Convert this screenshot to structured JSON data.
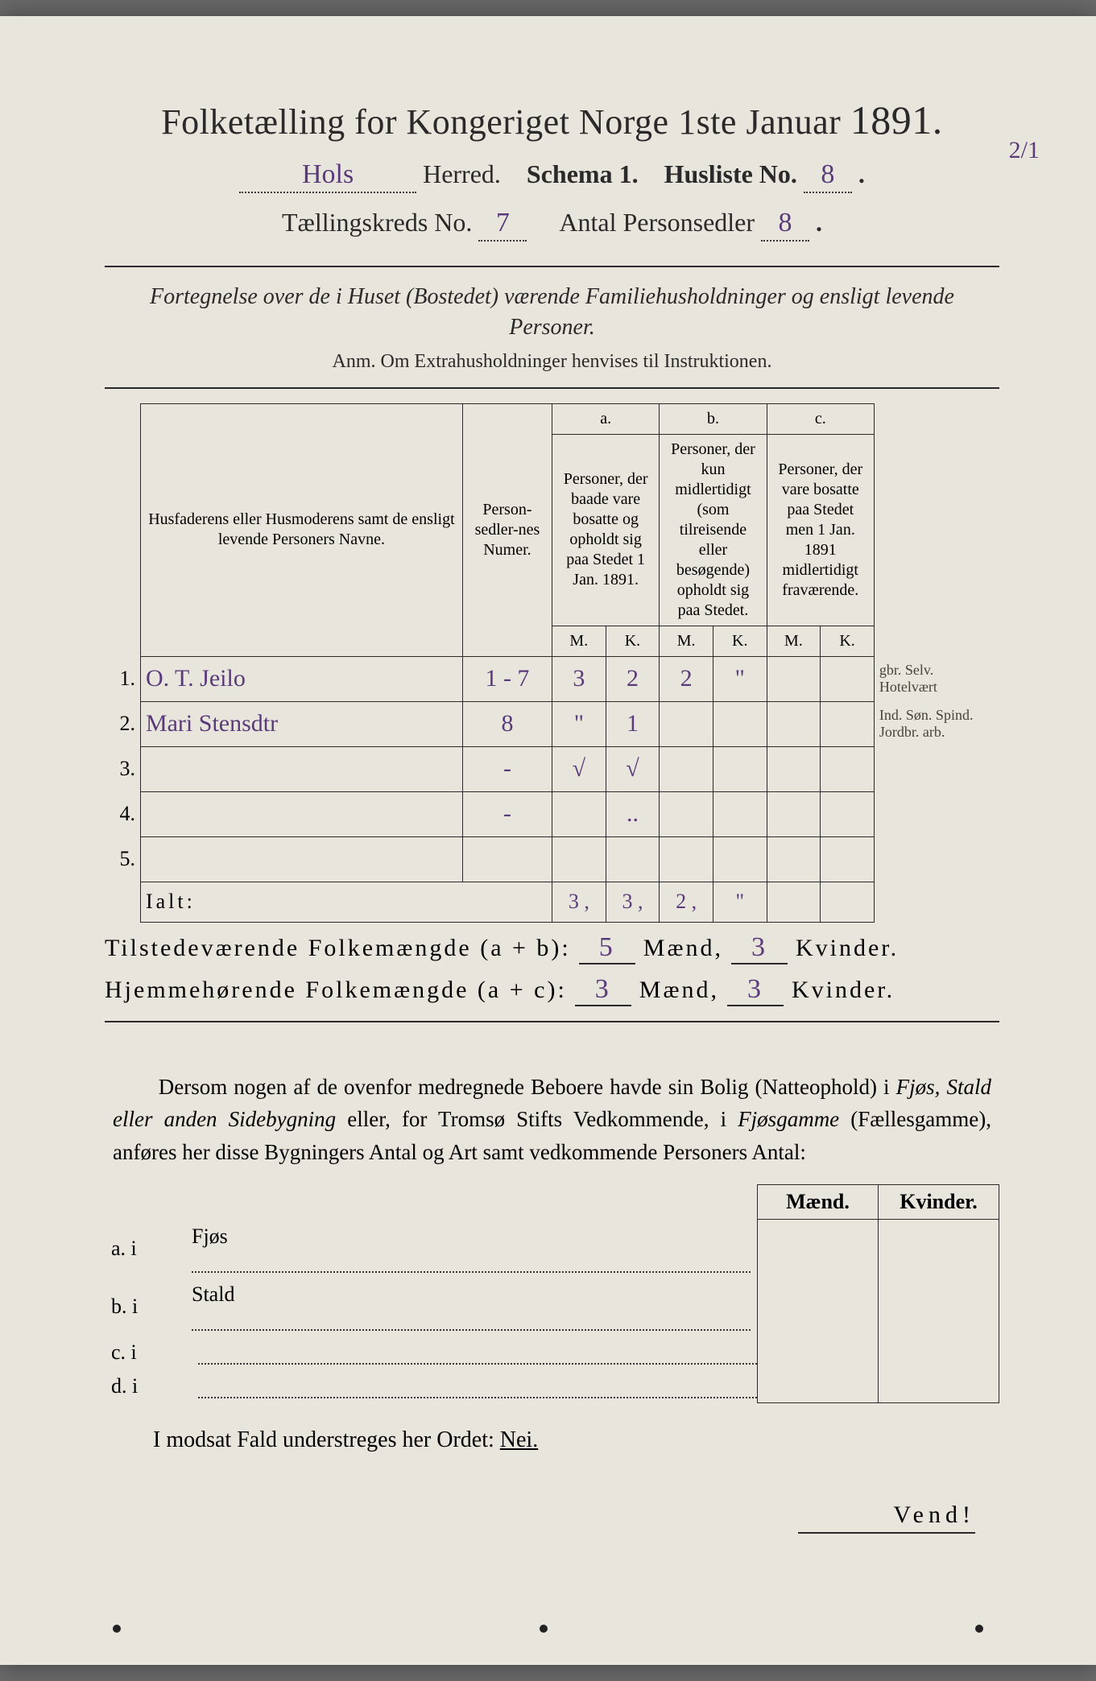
{
  "title": {
    "main": "Folketælling for Kongeriget Norge 1ste Januar",
    "year": "1891."
  },
  "header": {
    "herred_value": "Hols",
    "herred_label": "Herred.",
    "schema_label": "Schema",
    "schema_no": "1.",
    "husliste_label": "Husliste No.",
    "husliste_no": "8",
    "corner_note": "2/1",
    "kreds_label": "Tællingskreds No.",
    "kreds_no": "7",
    "antal_label": "Antal Personsedler",
    "antal_no": "8"
  },
  "subheading": "Fortegnelse over de i Huset (Bostedet) værende Familiehusholdninger og ensligt levende Personer.",
  "anm": "Anm.  Om Extrahusholdninger henvises til Instruktionen.",
  "table": {
    "col_name": "Husfaderens eller Husmoderens samt de ensligt levende Personers Navne.",
    "col_num": "Person-sedler-nes Numer.",
    "col_a_top": "a.",
    "col_a": "Personer, der baade vare bosatte og opholdt sig paa Stedet 1 Jan. 1891.",
    "col_b_top": "b.",
    "col_b": "Personer, der kun midlertidigt (som tilreisende eller besøgende) opholdt sig paa Stedet.",
    "col_c_top": "c.",
    "col_c": "Personer, der vare bosatte paa Stedet men 1 Jan. 1891 midlertidigt fraværende.",
    "mk_m": "M.",
    "mk_k": "K.",
    "rows": [
      {
        "n": "1.",
        "name": "O. T. Jeilo",
        "num": "1 - 7",
        "am": "3",
        "ak": "2",
        "bm": "2",
        "bk": "\"",
        "cm": "",
        "ck": "",
        "margin": "gbr. Selv. Hotelvært"
      },
      {
        "n": "2.",
        "name": "Mari Stensdtr",
        "num": "8",
        "am": "\"",
        "ak": "1",
        "bm": "",
        "bk": "",
        "cm": "",
        "ck": "",
        "margin": "Ind. Søn. Spind. Jordbr. arb."
      },
      {
        "n": "3.",
        "name": "",
        "num": "-",
        "am": "√",
        "ak": "√",
        "bm": "",
        "bk": "",
        "cm": "",
        "ck": "",
        "margin": ""
      },
      {
        "n": "4.",
        "name": "",
        "num": "-",
        "am": "",
        "ak": "..",
        "bm": "",
        "bk": "",
        "cm": "",
        "ck": "",
        "margin": ""
      },
      {
        "n": "5.",
        "name": "",
        "num": "",
        "am": "",
        "ak": "",
        "bm": "",
        "bk": "",
        "cm": "",
        "ck": "",
        "margin": ""
      }
    ],
    "ialt_label": "Ialt:",
    "ialt": {
      "am": "3 ,",
      "ak": "3 ,",
      "bm": "2 ,",
      "bk": "\""
    }
  },
  "summary": {
    "line1_label": "Tilstedeværende Folkemængde (a + b):",
    "line1_m": "5",
    "line1_k": "3",
    "line2_label": "Hjemmehørende Folkemængde (a + c):",
    "line2_m": "3",
    "line2_k": "3",
    "maend": "Mænd,",
    "kvinder": "Kvinder."
  },
  "paragraph": {
    "text1": "Dersom nogen af de ovenfor medregnede Beboere havde sin Bolig (Natteophold) i ",
    "ital1": "Fjøs, Stald eller anden Sidebygning",
    "text2": " eller, for Tromsø Stifts Vedkommende, i ",
    "ital2": "Fjøsgamme",
    "text3": " (Fællesgamme), anføres her disse Bygningers Antal og Art samt vedkommende Personers Antal:"
  },
  "bottom_table": {
    "head_m": "Mænd.",
    "head_k": "Kvinder.",
    "rows": [
      {
        "key": "a.  i",
        "label": "Fjøs"
      },
      {
        "key": "b.  i",
        "label": "Stald"
      },
      {
        "key": "c.  i",
        "label": ""
      },
      {
        "key": "d.  i",
        "label": ""
      }
    ]
  },
  "nei_line": {
    "pre": "I modsat Fald understreges her Ordet: ",
    "word": "Nei."
  },
  "vend": "Vend!",
  "colors": {
    "paper": "#e8e6dc",
    "ink": "#2a2a2a",
    "handwriting": "#5a3a7a",
    "margin_hand": "#4a4238"
  }
}
